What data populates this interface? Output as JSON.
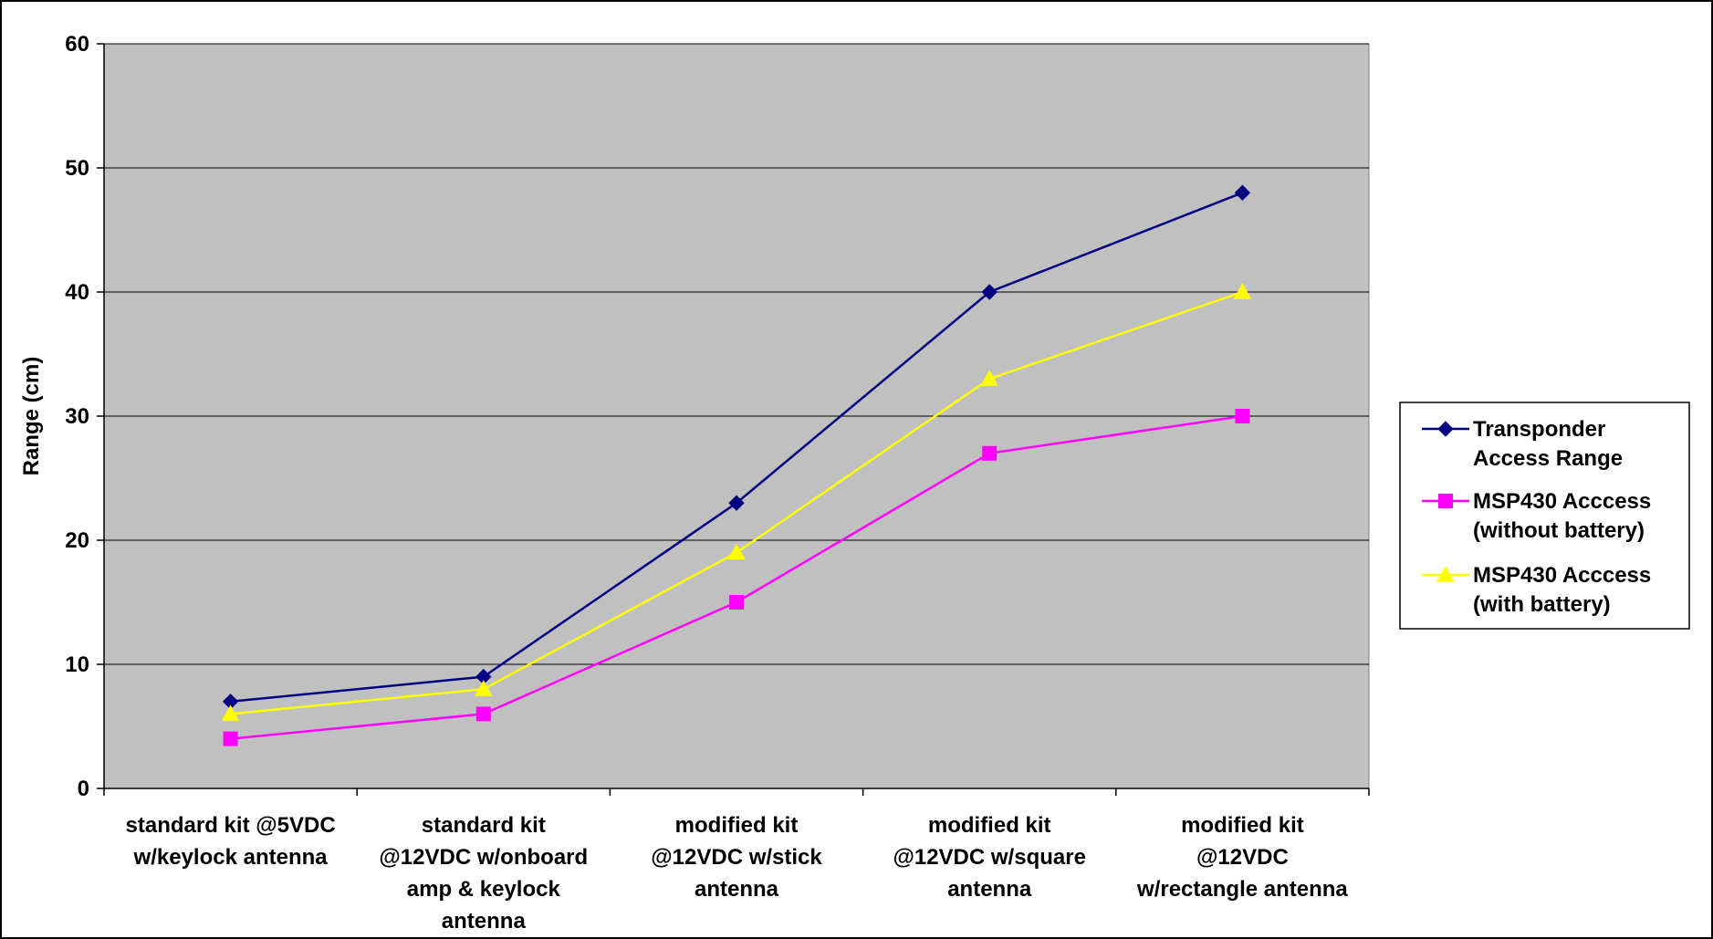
{
  "chart_data": {
    "type": "line",
    "title": "",
    "xlabel": "",
    "ylabel": "Range (cm)",
    "ylim": [
      0,
      60
    ],
    "yticks": [
      0,
      10,
      20,
      30,
      40,
      50,
      60
    ],
    "grid": true,
    "legend_position": "right",
    "plot_background": "#C0C0C0",
    "categories": [
      [
        "standard kit @5VDC",
        "w/keylock antenna"
      ],
      [
        "standard kit",
        "@12VDC w/onboard",
        "amp & keylock",
        "antenna"
      ],
      [
        "modified kit",
        "@12VDC w/stick",
        "antenna"
      ],
      [
        "modified kit",
        "@12VDC w/square",
        "antenna"
      ],
      [
        "modified kit",
        "@12VDC",
        "w/rectangle antenna"
      ]
    ],
    "series": [
      {
        "name": [
          "Transponder",
          "Access Range"
        ],
        "color": "#000080",
        "marker": "diamond",
        "values": [
          7,
          9,
          23,
          40,
          48
        ]
      },
      {
        "name": [
          "MSP430 Acccess",
          "(without battery)"
        ],
        "color": "#FF00FF",
        "marker": "square",
        "values": [
          4,
          6,
          15,
          27,
          30
        ]
      },
      {
        "name": [
          "MSP430 Acccess",
          "(with battery)"
        ],
        "color": "#FFFF00",
        "marker": "triangle",
        "values": [
          6,
          8,
          19,
          33,
          40
        ]
      }
    ]
  }
}
